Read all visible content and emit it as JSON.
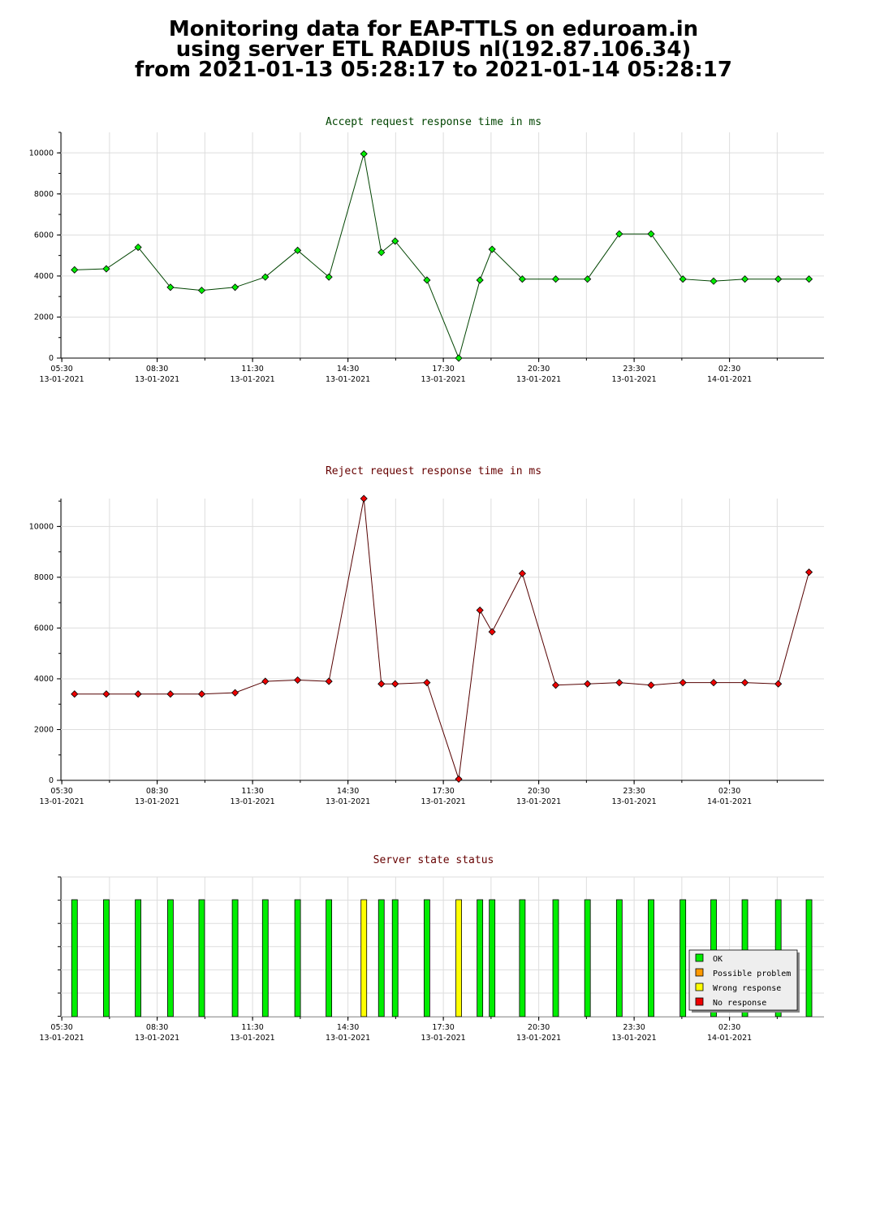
{
  "header": {
    "line1": "Monitoring data for EAP-TTLS on eduroam.in",
    "line2": "using server ETL RADIUS nl(192.87.106.34)",
    "line3": "from 2021-01-13 05:28:17 to 2021-01-14 05:28:17"
  },
  "colors": {
    "accept_line": "#004400",
    "accept_point": "#00ee00",
    "reject_line": "#550000",
    "reject_point": "#ee0000",
    "accept_title": "#004400",
    "reject_title": "#660000",
    "status_title": "#660000",
    "ok": "#00ee00",
    "possible_problem": "#ff9900",
    "wrong_response": "#ffff00",
    "no_response": "#ee0000"
  },
  "x_axis": {
    "ticks": [
      {
        "time": "05:30",
        "date": "13-01-2021"
      },
      {
        "time": "08:30",
        "date": "13-01-2021"
      },
      {
        "time": "11:30",
        "date": "13-01-2021"
      },
      {
        "time": "14:30",
        "date": "13-01-2021"
      },
      {
        "time": "17:30",
        "date": "13-01-2021"
      },
      {
        "time": "20:30",
        "date": "13-01-2021"
      },
      {
        "time": "23:30",
        "date": "13-01-2021"
      },
      {
        "time": "02:30",
        "date": "14-01-2021"
      }
    ]
  },
  "chart_data": [
    {
      "type": "line",
      "title": "Accept request response time in ms",
      "ylim": [
        0,
        11000
      ],
      "yticks": [
        "0",
        "2000",
        "4000",
        "6000",
        "8000",
        "10000"
      ],
      "grid": true,
      "x": [
        "2021-01-13 05:54",
        "2021-01-13 06:54",
        "2021-01-13 07:54",
        "2021-01-13 08:55",
        "2021-01-13 09:54",
        "2021-01-13 10:57",
        "2021-01-13 11:54",
        "2021-01-13 12:55",
        "2021-01-13 13:54",
        "2021-01-13 15:00",
        "2021-01-13 15:33",
        "2021-01-13 15:59",
        "2021-01-13 16:59",
        "2021-01-13 17:59",
        "2021-01-13 18:39",
        "2021-01-13 19:02",
        "2021-01-13 19:59",
        "2021-01-13 21:02",
        "2021-01-13 22:02",
        "2021-01-13 23:02",
        "2021-01-14 00:02",
        "2021-01-14 01:02",
        "2021-01-14 02:00",
        "2021-01-14 02:59",
        "2021-01-14 04:02",
        "2021-01-14 05:00"
      ],
      "series": [
        {
          "values": [
            4300,
            4350,
            5400,
            3450,
            3300,
            3450,
            3950,
            5250,
            3950,
            9950,
            5150,
            5700,
            3800,
            0,
            3800,
            5300,
            3850,
            3850,
            3850,
            6050,
            6050,
            3850,
            3750,
            3850,
            3850,
            3850
          ]
        }
      ]
    },
    {
      "type": "line",
      "title": "Reject request response time in ms",
      "ylim": [
        0,
        11100
      ],
      "yticks": [
        "0",
        "2000",
        "4000",
        "6000",
        "8000",
        "10000"
      ],
      "grid": true,
      "x": [
        "2021-01-13 05:54",
        "2021-01-13 06:54",
        "2021-01-13 07:54",
        "2021-01-13 08:55",
        "2021-01-13 09:54",
        "2021-01-13 10:57",
        "2021-01-13 11:54",
        "2021-01-13 12:55",
        "2021-01-13 13:54",
        "2021-01-13 15:00",
        "2021-01-13 15:33",
        "2021-01-13 15:59",
        "2021-01-13 16:59",
        "2021-01-13 17:59",
        "2021-01-13 18:39",
        "2021-01-13 19:02",
        "2021-01-13 19:59",
        "2021-01-13 21:02",
        "2021-01-13 22:02",
        "2021-01-13 23:02",
        "2021-01-14 00:02",
        "2021-01-14 01:02",
        "2021-01-14 02:00",
        "2021-01-14 02:59",
        "2021-01-14 04:02",
        "2021-01-14 05:00"
      ],
      "series": [
        {
          "values": [
            3400,
            3400,
            3400,
            3400,
            3400,
            3450,
            3900,
            3950,
            3900,
            11100,
            3800,
            3800,
            3850,
            50,
            6700,
            5850,
            8150,
            3750,
            3800,
            3850,
            3750,
            3850,
            3850,
            3850,
            3800,
            8200
          ]
        }
      ]
    },
    {
      "type": "bar",
      "title": "Server state status",
      "grid": true,
      "legend": {
        "position": "bottom-right",
        "items": [
          {
            "key": "ok",
            "label": "OK"
          },
          {
            "key": "possible_problem",
            "label": "Possible problem"
          },
          {
            "key": "wrong_response",
            "label": "Wrong response"
          },
          {
            "key": "no_response",
            "label": "No response"
          }
        ]
      },
      "x": [
        "2021-01-13 05:54",
        "2021-01-13 06:54",
        "2021-01-13 07:54",
        "2021-01-13 08:55",
        "2021-01-13 09:54",
        "2021-01-13 10:57",
        "2021-01-13 11:54",
        "2021-01-13 12:55",
        "2021-01-13 13:54",
        "2021-01-13 15:00",
        "2021-01-13 15:33",
        "2021-01-13 15:59",
        "2021-01-13 16:59",
        "2021-01-13 17:59",
        "2021-01-13 18:39",
        "2021-01-13 19:02",
        "2021-01-13 19:59",
        "2021-01-13 21:02",
        "2021-01-13 22:02",
        "2021-01-13 23:02",
        "2021-01-14 00:02",
        "2021-01-14 01:02",
        "2021-01-14 02:00",
        "2021-01-14 02:59",
        "2021-01-14 04:02",
        "2021-01-14 05:00"
      ],
      "states": [
        "ok",
        "ok",
        "ok",
        "ok",
        "ok",
        "ok",
        "ok",
        "ok",
        "ok",
        "wrong_response",
        "ok",
        "ok",
        "ok",
        "wrong_response",
        "ok",
        "ok",
        "ok",
        "ok",
        "ok",
        "ok",
        "ok",
        "ok",
        "ok",
        "ok",
        "ok",
        "ok"
      ]
    }
  ]
}
